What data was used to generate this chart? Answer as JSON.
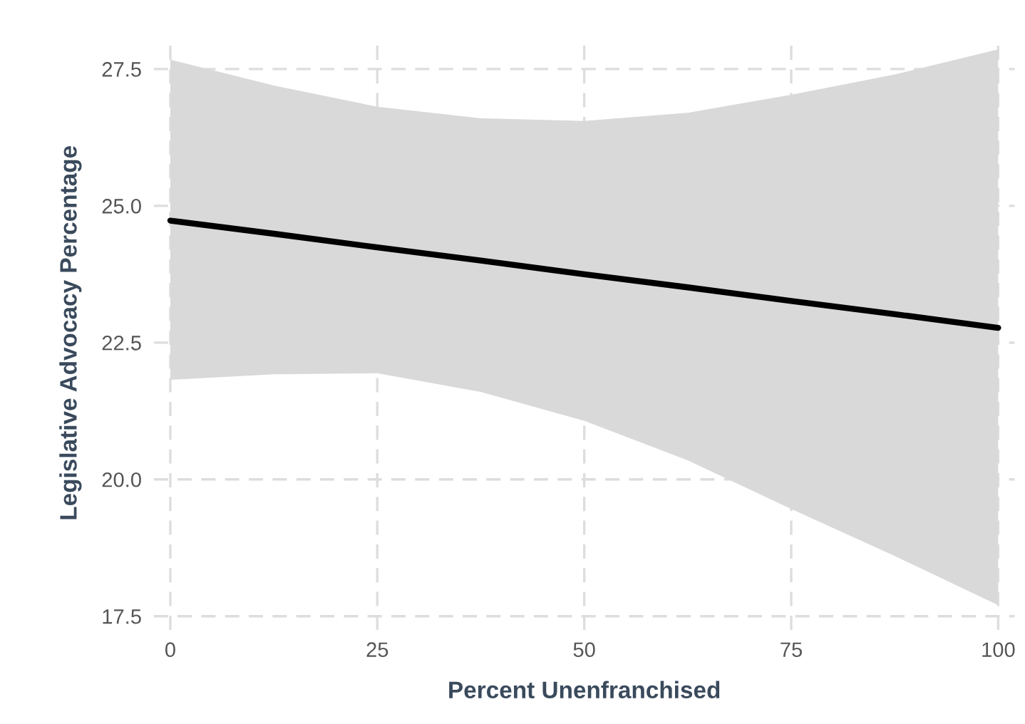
{
  "chart_data": {
    "type": "line",
    "xlabel": "Percent Unenfranchised",
    "ylabel": "Legislative Advocacy Percentage",
    "x": [
      0,
      12.5,
      25,
      37.5,
      50,
      62.5,
      75,
      87.5,
      100
    ],
    "series": [
      {
        "color": "#000000",
        "values": [
          24.73,
          24.49,
          24.24,
          24.0,
          23.75,
          23.51,
          23.26,
          23.02,
          22.77
        ],
        "lower": [
          21.82,
          21.92,
          21.94,
          21.6,
          21.07,
          20.35,
          19.46,
          18.6,
          17.7
        ],
        "upper": [
          27.67,
          27.2,
          26.81,
          26.6,
          26.55,
          26.7,
          27.03,
          27.4,
          27.86
        ]
      }
    ],
    "xlim": [
      -2,
      102
    ],
    "xticks": [
      0,
      25,
      50,
      75,
      100
    ],
    "ylim": [
      17.25,
      28.1
    ],
    "yticks": [
      {
        "value": 17.5,
        "label": "17.5"
      },
      {
        "value": 20,
        "label": "20.0"
      },
      {
        "value": 22.5,
        "label": "22.5"
      },
      {
        "value": 25,
        "label": "25.0"
      },
      {
        "value": 27.5,
        "label": "27.5"
      }
    ],
    "grid": true,
    "line_style": "solid",
    "marker": "none"
  }
}
